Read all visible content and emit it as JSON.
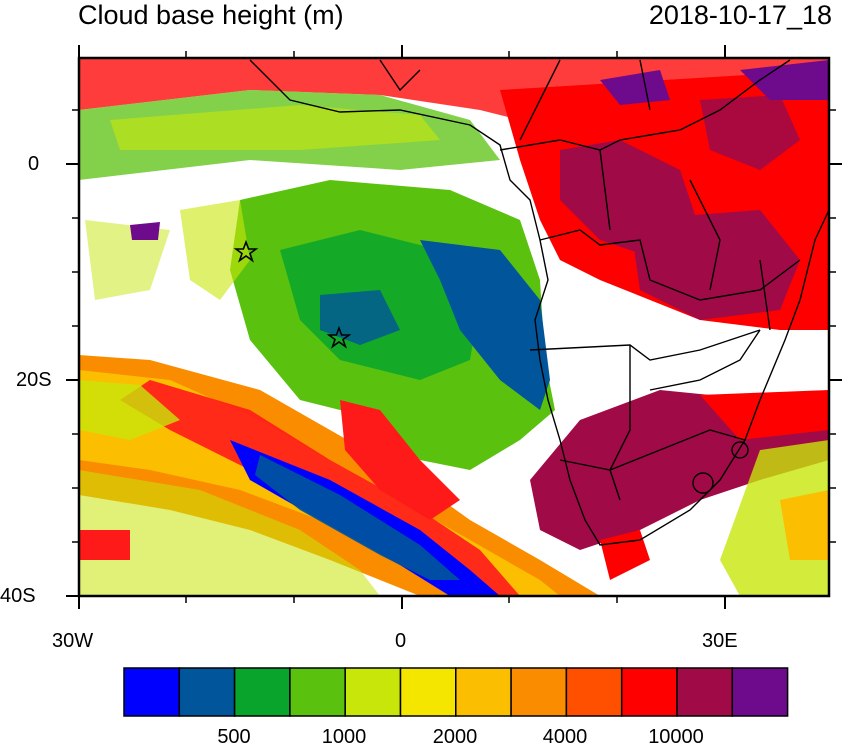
{
  "title": {
    "left": "Cloud base height (m)",
    "right": "2018-10-17_18"
  },
  "axes": {
    "y_ticks": [
      {
        "label": "0"
      },
      {
        "label": "20S"
      },
      {
        "label": "40S"
      }
    ],
    "x_ticks": [
      {
        "label": "30W"
      },
      {
        "label": "0"
      },
      {
        "label": "30E"
      }
    ]
  },
  "colorbar": {
    "colors": [
      "#0000ff",
      "#00559b",
      "#08a42c",
      "#5ac20f",
      "#c8e60a",
      "#f5e600",
      "#fcbe00",
      "#fa8c00",
      "#ff5000",
      "#ff0000",
      "#a00a46",
      "#6e0a8c"
    ],
    "labels": [
      {
        "text": "500"
      },
      {
        "text": "1000"
      },
      {
        "text": "2000"
      },
      {
        "text": "4000"
      },
      {
        "text": "10000"
      }
    ]
  },
  "markers": {
    "symbol": "star"
  }
}
